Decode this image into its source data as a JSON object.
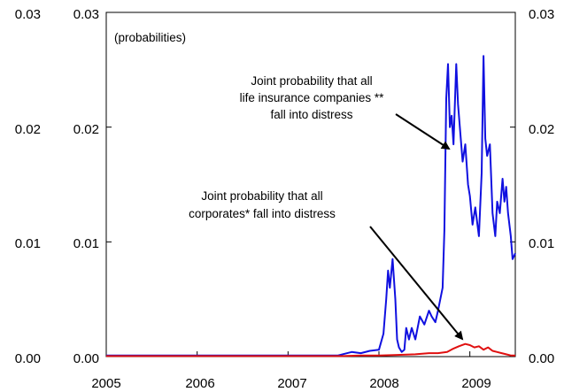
{
  "chart_data": {
    "type": "line",
    "title": "",
    "xlabel": "",
    "ylabel": "",
    "panel_label": "(probabilities)",
    "x_ticks": [
      "2005",
      "2006",
      "2007",
      "2008",
      "2009"
    ],
    "y_ticks": [
      "0.00",
      "0.01",
      "0.02",
      "0.03"
    ],
    "xlim": [
      2005.0,
      2009.5
    ],
    "ylim": [
      0,
      0.03
    ],
    "grid": false,
    "colors": {
      "life": "#1010e0",
      "corp": "#e01010"
    },
    "series": [
      {
        "key": "life",
        "x": [
          2005.0,
          2006.0,
          2007.0,
          2007.55,
          2007.7,
          2007.8,
          2007.9,
          2008.0,
          2008.05,
          2008.08,
          2008.1,
          2008.12,
          2008.15,
          2008.18,
          2008.2,
          2008.22,
          2008.25,
          2008.28,
          2008.3,
          2008.33,
          2008.36,
          2008.4,
          2008.45,
          2008.5,
          2008.55,
          2008.58,
          2008.62,
          2008.65,
          2008.7,
          2008.72,
          2008.74,
          2008.76,
          2008.78,
          2008.8,
          2008.82,
          2008.85,
          2008.87,
          2008.9,
          2008.92,
          2008.95,
          2008.98,
          2009.0,
          2009.03,
          2009.06,
          2009.1,
          2009.13,
          2009.15,
          2009.17,
          2009.19,
          2009.22,
          2009.25,
          2009.28,
          2009.3,
          2009.33,
          2009.36,
          2009.38,
          2009.4,
          2009.42,
          2009.45,
          2009.47,
          2009.5
        ],
        "values": [
          0.0001,
          0.0001,
          0.0001,
          0.0001,
          0.0004,
          0.0003,
          0.0005,
          0.0006,
          0.002,
          0.005,
          0.0075,
          0.006,
          0.0085,
          0.005,
          0.0015,
          0.0008,
          0.0004,
          0.0006,
          0.0025,
          0.0015,
          0.0025,
          0.0015,
          0.0035,
          0.0028,
          0.004,
          0.0035,
          0.003,
          0.004,
          0.006,
          0.011,
          0.0225,
          0.0255,
          0.02,
          0.021,
          0.0185,
          0.0255,
          0.022,
          0.019,
          0.017,
          0.0185,
          0.015,
          0.014,
          0.0115,
          0.013,
          0.0105,
          0.016,
          0.0262,
          0.019,
          0.0175,
          0.0185,
          0.0125,
          0.0105,
          0.0135,
          0.0125,
          0.0155,
          0.0135,
          0.0148,
          0.0125,
          0.0105,
          0.0085,
          0.009
        ]
      },
      {
        "key": "corp",
        "x": [
          2005.0,
          2006.0,
          2007.0,
          2007.6,
          2007.8,
          2008.0,
          2008.2,
          2008.4,
          2008.55,
          2008.65,
          2008.75,
          2008.82,
          2008.88,
          2008.95,
          2009.0,
          2009.05,
          2009.1,
          2009.15,
          2009.2,
          2009.25,
          2009.3,
          2009.35,
          2009.4,
          2009.45,
          2009.5
        ],
        "values": [
          5e-05,
          5e-05,
          5e-05,
          5e-05,
          0.0001,
          0.0001,
          0.00015,
          0.0002,
          0.0003,
          0.0003,
          0.0004,
          0.0007,
          0.0009,
          0.0011,
          0.001,
          0.0008,
          0.0009,
          0.0006,
          0.0008,
          0.0005,
          0.0004,
          0.0003,
          0.0002,
          0.0001,
          0.0001
        ]
      }
    ],
    "annotations": [
      {
        "lines": [
          "Joint probability that all",
          "life insurance companies **",
          "fall into distress"
        ]
      },
      {
        "lines": [
          "Joint probability that all",
          "corporates* fall into distress"
        ]
      }
    ]
  }
}
